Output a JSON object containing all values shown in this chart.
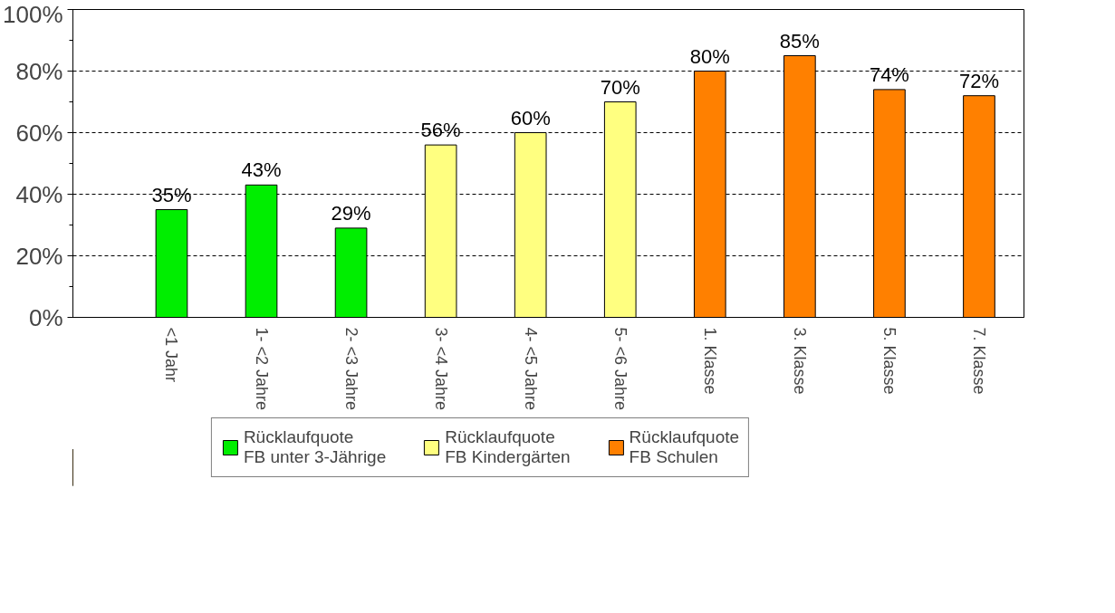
{
  "chart_data": {
    "type": "bar",
    "categories": [
      "<1 Jahr",
      "1- <2 Jahre",
      "2- <3 Jahre",
      "3- <4 Jahre",
      "4- <5 Jahre",
      "5- <6 Jahre",
      "1. Klasse",
      "3. Klasse",
      "5. Klasse",
      "7. Klasse"
    ],
    "series": [
      {
        "name": "Rücklaufquote\nFB unter 3-Jährige",
        "color": "#00ee00",
        "values": [
          35,
          43,
          29,
          null,
          null,
          null,
          null,
          null,
          null,
          null
        ],
        "value_labels": [
          "35%",
          "43%",
          "29%",
          null,
          null,
          null,
          null,
          null,
          null,
          null
        ]
      },
      {
        "name": "Rücklaufquote\nFB Kindergärten",
        "color": "#ffff80",
        "values": [
          null,
          null,
          null,
          56,
          60,
          70,
          null,
          null,
          null,
          null
        ],
        "value_labels": [
          null,
          null,
          null,
          "56%",
          "60%",
          "70%",
          null,
          null,
          null,
          null
        ]
      },
      {
        "name": "Rücklaufquote\nFB Schulen",
        "color": "#ff8000",
        "values": [
          null,
          null,
          null,
          null,
          null,
          null,
          80,
          85,
          74,
          72
        ],
        "value_labels": [
          null,
          null,
          null,
          null,
          null,
          null,
          "80%",
          "85%",
          "74%",
          "72%"
        ]
      }
    ],
    "ylim": [
      0,
      100
    ],
    "yticks": [
      {
        "value": 0,
        "label": "0%"
      },
      {
        "value": 20,
        "label": "20%"
      },
      {
        "value": 40,
        "label": "40%"
      },
      {
        "value": 60,
        "label": "60%"
      },
      {
        "value": 80,
        "label": "80%"
      },
      {
        "value": 100,
        "label": "100%"
      }
    ],
    "grid": "y",
    "legend": "bottom"
  }
}
